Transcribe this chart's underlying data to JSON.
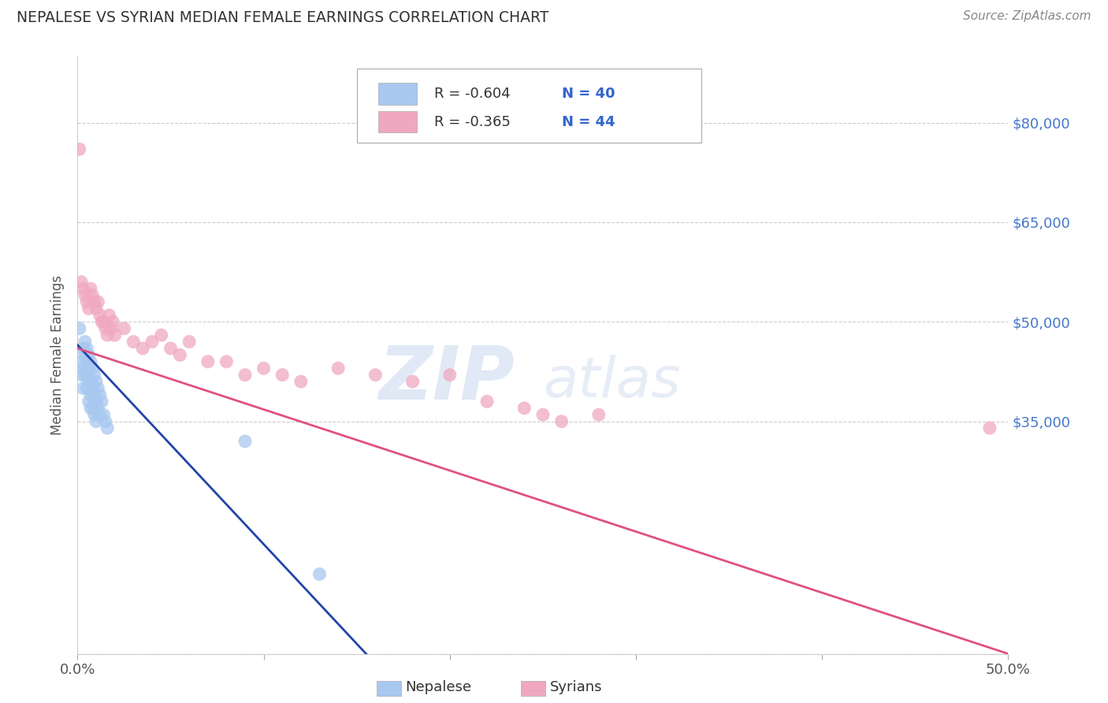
{
  "title": "NEPALESE VS SYRIAN MEDIAN FEMALE EARNINGS CORRELATION CHART",
  "source": "Source: ZipAtlas.com",
  "ylabel": "Median Female Earnings",
  "yticks": [
    0,
    35000,
    50000,
    65000,
    80000
  ],
  "ytick_labels": [
    "",
    "$35,000",
    "$50,000",
    "$65,000",
    "$80,000"
  ],
  "xlim": [
    0.0,
    0.5
  ],
  "ylim": [
    0,
    90000
  ],
  "legend_r1": "R = -0.604",
  "legend_n1": "N = 40",
  "legend_r2": "R = -0.365",
  "legend_n2": "N = 44",
  "nepalese_color": "#a8c8f0",
  "syrian_color": "#f0a8c0",
  "nepalese_line_color": "#2244aa",
  "syrian_line_color": "#e05080",
  "watermark_zip": "ZIP",
  "watermark_atlas": "atlas",
  "background_color": "#ffffff",
  "nepalese_x": [
    0.001,
    0.002,
    0.002,
    0.003,
    0.003,
    0.003,
    0.004,
    0.004,
    0.004,
    0.005,
    0.005,
    0.005,
    0.005,
    0.006,
    0.006,
    0.006,
    0.006,
    0.007,
    0.007,
    0.007,
    0.007,
    0.008,
    0.008,
    0.008,
    0.009,
    0.009,
    0.009,
    0.01,
    0.01,
    0.01,
    0.011,
    0.011,
    0.012,
    0.012,
    0.013,
    0.014,
    0.015,
    0.016,
    0.09,
    0.13
  ],
  "nepalese_y": [
    49000,
    44000,
    42000,
    46000,
    43000,
    40000,
    47000,
    45000,
    42000,
    46000,
    44000,
    42000,
    40000,
    45000,
    43000,
    41000,
    38000,
    44000,
    41000,
    39000,
    37000,
    43000,
    40000,
    37000,
    42000,
    39000,
    36000,
    41000,
    38000,
    35000,
    40000,
    37000,
    39000,
    36000,
    38000,
    36000,
    35000,
    34000,
    32000,
    12000
  ],
  "syrian_x": [
    0.001,
    0.002,
    0.003,
    0.004,
    0.005,
    0.006,
    0.007,
    0.008,
    0.009,
    0.01,
    0.011,
    0.012,
    0.013,
    0.014,
    0.015,
    0.016,
    0.017,
    0.018,
    0.019,
    0.02,
    0.025,
    0.03,
    0.035,
    0.04,
    0.045,
    0.05,
    0.055,
    0.06,
    0.07,
    0.08,
    0.09,
    0.1,
    0.11,
    0.12,
    0.14,
    0.16,
    0.18,
    0.2,
    0.22,
    0.24,
    0.25,
    0.26,
    0.28,
    0.49
  ],
  "syrian_y": [
    76000,
    56000,
    55000,
    54000,
    53000,
    52000,
    55000,
    54000,
    53000,
    52000,
    53000,
    51000,
    50000,
    50000,
    49000,
    48000,
    51000,
    49000,
    50000,
    48000,
    49000,
    47000,
    46000,
    47000,
    48000,
    46000,
    45000,
    47000,
    44000,
    44000,
    42000,
    43000,
    42000,
    41000,
    43000,
    42000,
    41000,
    42000,
    38000,
    37000,
    36000,
    35000,
    36000,
    34000
  ],
  "nepalese_line_x0": 0.0,
  "nepalese_line_y0": 46500,
  "nepalese_line_x1": 0.155,
  "nepalese_line_y1": 0,
  "syrian_line_x0": 0.0,
  "syrian_line_y0": 46000,
  "syrian_line_x1": 0.5,
  "syrian_line_y1": 0
}
